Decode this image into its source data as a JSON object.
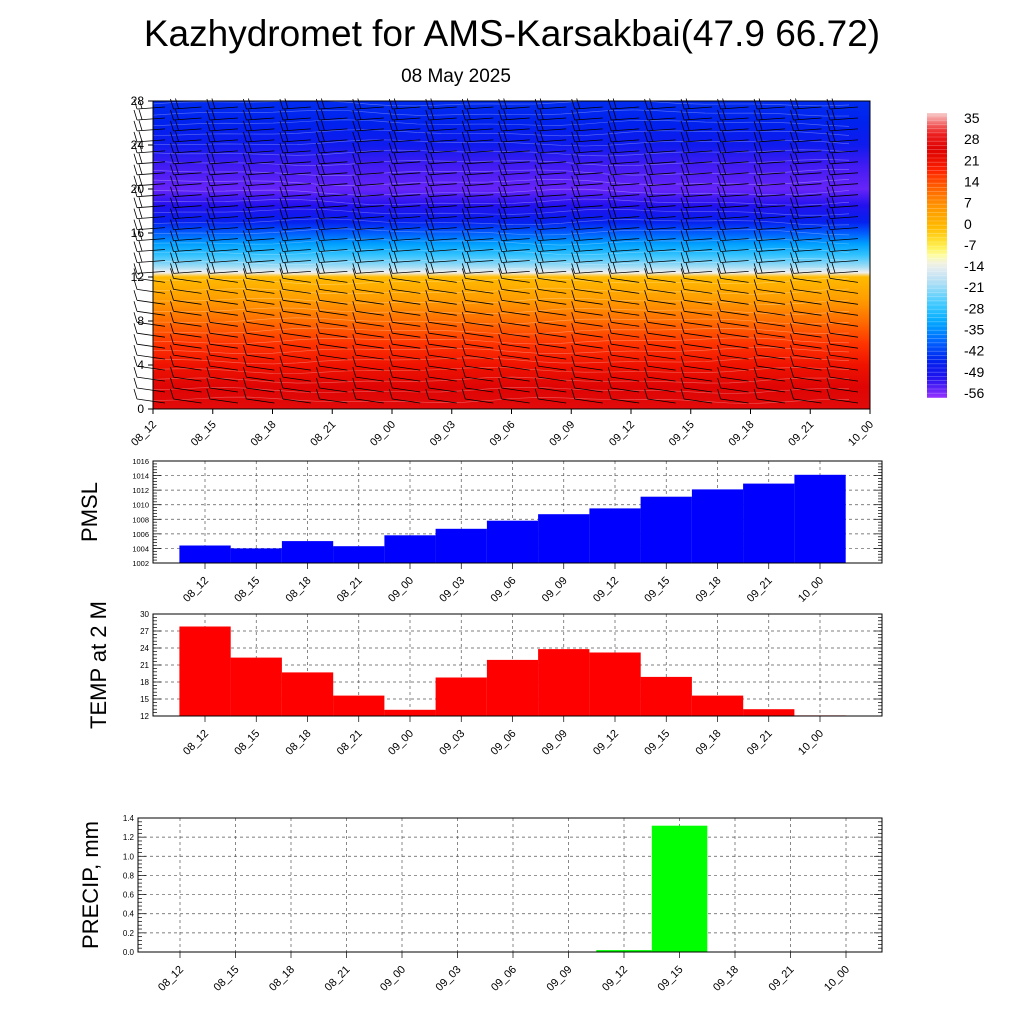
{
  "page": {
    "title": "Kazhydromet for AMS-Karsakbai(47.9 66.72)",
    "date": "08 May 2025"
  },
  "chart_data": [
    {
      "type": "heatmap",
      "name": "cross-section",
      "x": [
        "08_12",
        "08_15",
        "08_18",
        "08_21",
        "09_00",
        "09_03",
        "09_06",
        "09_09",
        "09_12",
        "09_15",
        "09_18",
        "09_21",
        "10_00"
      ],
      "y_ticks": [
        0,
        4,
        8,
        12,
        16,
        20,
        24,
        28
      ],
      "ylim": [
        0,
        28
      ],
      "colorbar": {
        "labels": [
          "35",
          "28",
          "21",
          "14",
          "7",
          "0",
          "-7",
          "-14",
          "-21",
          "-28",
          "-35",
          "-42",
          "-49",
          "-56"
        ],
        "range": [
          -63,
          42
        ]
      },
      "temperature_profile": [
        {
          "level": 0,
          "value": 30
        },
        {
          "level": 2,
          "value": 29
        },
        {
          "level": 4,
          "value": 24
        },
        {
          "level": 6,
          "value": 19
        },
        {
          "level": 8,
          "value": 13
        },
        {
          "level": 10,
          "value": 6
        },
        {
          "level": 12,
          "value": 0
        },
        {
          "level": 12.4,
          "value": -14
        },
        {
          "level": 13,
          "value": -22
        },
        {
          "level": 14,
          "value": -30
        },
        {
          "level": 15,
          "value": -36
        },
        {
          "level": 16,
          "value": -43
        },
        {
          "level": 17,
          "value": -50
        },
        {
          "level": 18.5,
          "value": -56
        },
        {
          "level": 20,
          "value": -60
        },
        {
          "level": 22,
          "value": -58
        },
        {
          "level": 24,
          "value": -52
        },
        {
          "level": 26,
          "value": -49
        },
        {
          "level": 28,
          "value": -48
        }
      ]
    },
    {
      "type": "line",
      "name": "pmsl",
      "ylabel": "PMSL",
      "categories": [
        "08_12",
        "08_15",
        "08_18",
        "08_21",
        "09_00",
        "09_03",
        "09_06",
        "09_09",
        "09_12",
        "09_15",
        "09_18",
        "09_21",
        "10_00"
      ],
      "values": [
        1004.4,
        1004.0,
        1005.0,
        1004.3,
        1005.8,
        1006.7,
        1007.8,
        1008.7,
        1009.5,
        1011.1,
        1012.1,
        1012.9,
        1014.1
      ],
      "ylim": [
        1002,
        1016
      ],
      "yticks": [
        1002,
        1004,
        1006,
        1008,
        1010,
        1012,
        1014,
        1016
      ],
      "color": "#0000ff",
      "grid": true
    },
    {
      "type": "line",
      "name": "temp2m",
      "ylabel": "TEMP at 2 M",
      "categories": [
        "08_12",
        "08_15",
        "08_18",
        "08_21",
        "09_00",
        "09_03",
        "09_06",
        "09_09",
        "09_12",
        "09_15",
        "09_18",
        "09_21",
        "10_00"
      ],
      "values": [
        27.8,
        22.3,
        19.7,
        15.6,
        13.1,
        18.8,
        21.9,
        23.8,
        23.2,
        18.9,
        15.6,
        13.2,
        12.1
      ],
      "ylim": [
        12,
        30
      ],
      "yticks": [
        12,
        15,
        18,
        21,
        24,
        27,
        30
      ],
      "color": "#ff0000",
      "grid": true
    },
    {
      "type": "bar",
      "name": "precip",
      "ylabel": "PRECIP, mm",
      "categories": [
        "08_12",
        "08_15",
        "08_18",
        "08_21",
        "09_00",
        "09_03",
        "09_06",
        "09_09",
        "09_12",
        "09_15",
        "09_18",
        "09_21",
        "10_00"
      ],
      "values": [
        0,
        0,
        0,
        0,
        0,
        0,
        0,
        0,
        0.02,
        1.32,
        0,
        0,
        0
      ],
      "ylim": [
        0,
        1.4
      ],
      "yticks": [
        "0.0",
        "0.2",
        "0.4",
        "0.6",
        "0.8",
        "1.0",
        "1.2",
        "1.4"
      ],
      "color": "#00ff00",
      "grid": true
    }
  ]
}
